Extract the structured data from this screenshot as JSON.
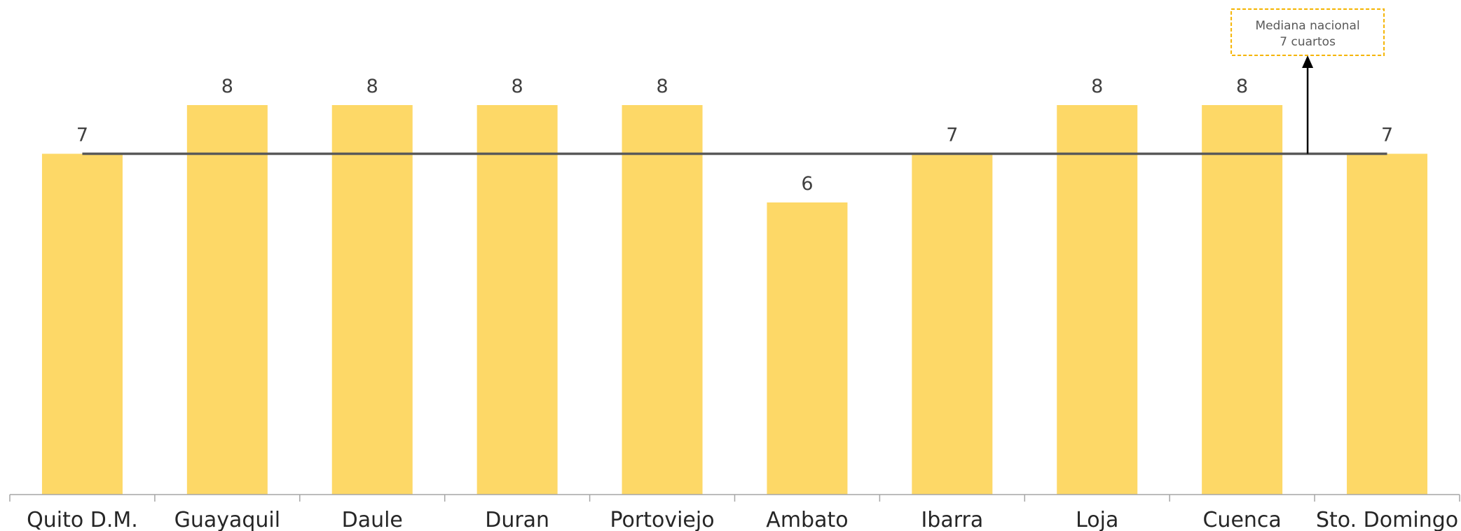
{
  "chart_data": {
    "type": "bar",
    "categories": [
      "Quito D.M.",
      "Guayaquil",
      "Daule",
      "Duran",
      "Portoviejo",
      "Ambato",
      "Ibarra",
      "Loja",
      "Cuenca",
      "Sto. Domingo"
    ],
    "values": [
      7,
      8,
      8,
      8,
      8,
      6,
      7,
      8,
      8,
      7
    ],
    "ylim": [
      0,
      10
    ],
    "grid": false,
    "legend": "none",
    "bar_color": "#FDD867",
    "reference_line": {
      "value": 7,
      "color": "#595959"
    },
    "annotation": {
      "lines": [
        "Mediana nacional",
        "7 cuartos"
      ],
      "border_color": "#F5B400"
    }
  }
}
